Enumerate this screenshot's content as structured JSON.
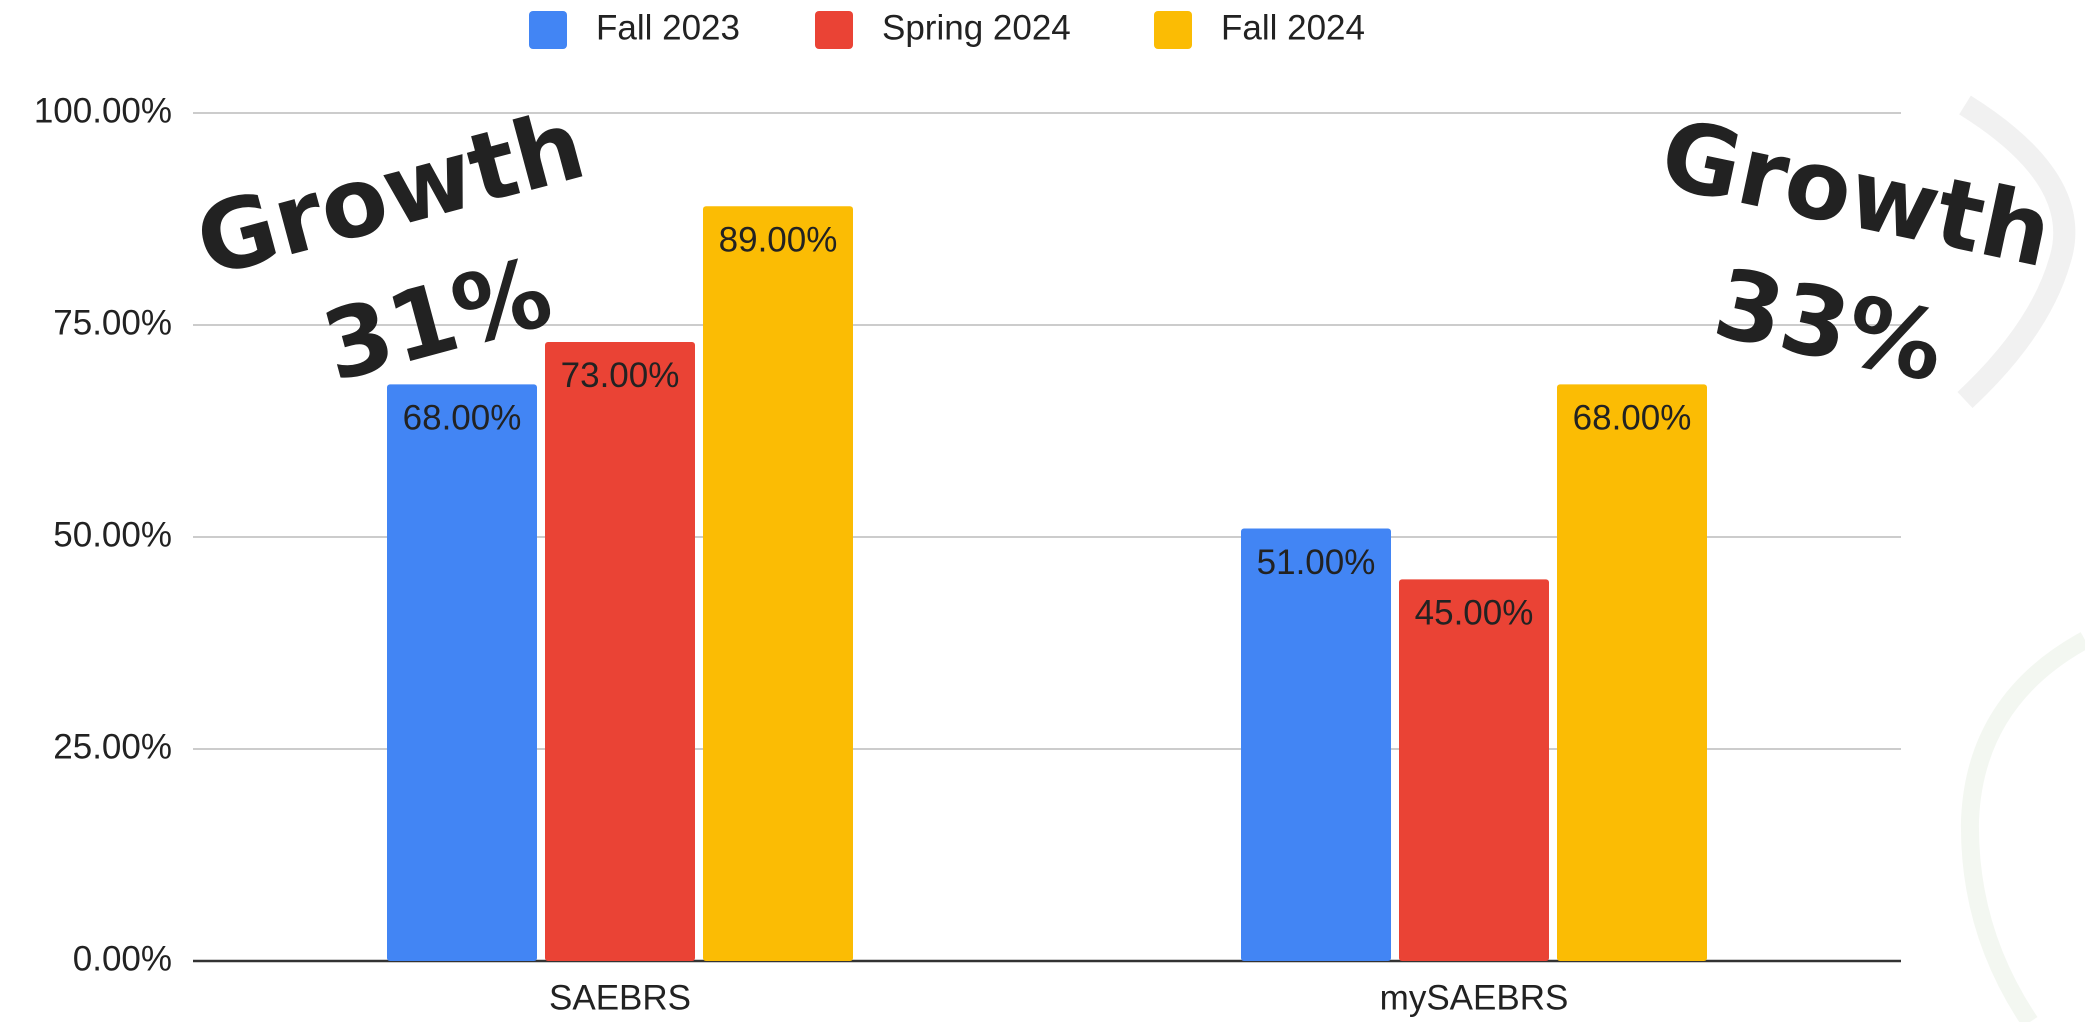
{
  "chart_data": {
    "type": "bar",
    "categories": [
      "SAEBRS",
      "mySAEBRS"
    ],
    "series": [
      {
        "name": "Fall 2023",
        "color": "#4285f4",
        "label_color": "#ffffff",
        "values": [
          68,
          51
        ],
        "value_labels": [
          "68.00%",
          "51.00%"
        ]
      },
      {
        "name": "Spring 2024",
        "color": "#ea4335",
        "label_color": "#ffffff",
        "values": [
          73,
          45
        ],
        "value_labels": [
          "73.00%",
          "45.00%"
        ]
      },
      {
        "name": "Fall 2024",
        "color": "#fbbc04",
        "label_color": "#202124",
        "values": [
          89,
          68
        ],
        "value_labels": [
          "89.00%",
          "68.00%"
        ]
      }
    ],
    "ylim": [
      0,
      100
    ],
    "yticks": [
      {
        "value": 0,
        "label": "0.00%"
      },
      {
        "value": 25,
        "label": "25.00%"
      },
      {
        "value": 50,
        "label": "50.00%"
      },
      {
        "value": 75,
        "label": "75.00%"
      },
      {
        "value": 100,
        "label": "100.00%"
      }
    ],
    "grid": true,
    "legend": "top",
    "annotations": [
      {
        "lines": [
          "Growth",
          "31%"
        ],
        "color": "#3a7a23"
      },
      {
        "lines": [
          "Growth",
          "33%"
        ],
        "color": "#3a7a23"
      }
    ]
  }
}
